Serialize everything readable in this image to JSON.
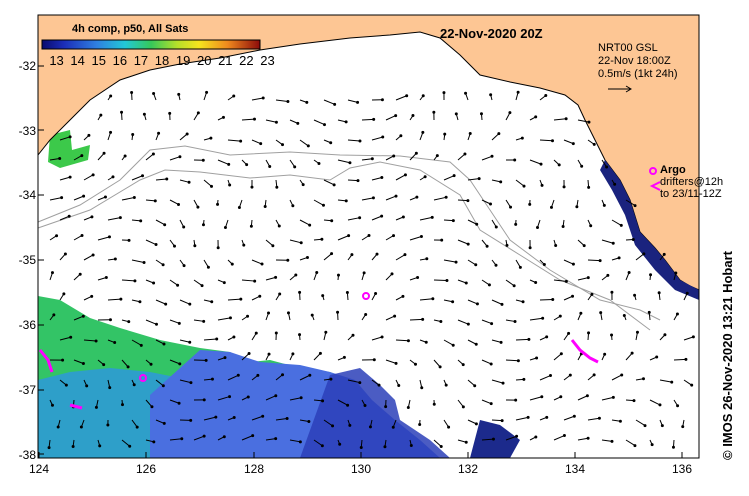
{
  "header": {
    "date_title": "22-Nov-2020 20Z",
    "colorbar_title": "4h comp, p50, All Sats",
    "colorbar_ticks": [
      "13",
      "14",
      "15",
      "16",
      "17",
      "18",
      "19",
      "20",
      "21",
      "22",
      "23"
    ]
  },
  "product": {
    "line1": "NRT00 GSL",
    "line2": "22-Nov 18:00Z",
    "line3": "0.5m/s (1kt 24h)"
  },
  "argo": {
    "title": "Argo",
    "line2": "drifters@12h",
    "line3": "to 23/11-12Z"
  },
  "credit": "©  IMOS 26-Nov-2020 13:21 Hobart",
  "axes": {
    "y_ticks": [
      "-32",
      "-33",
      "-34",
      "-35",
      "-36",
      "-37",
      "-38"
    ],
    "x_ticks": [
      "124",
      "126",
      "128",
      "130",
      "132",
      "134",
      "136"
    ]
  },
  "colors": {
    "land": "#fdc694",
    "current_arrows": "#000000",
    "argo_marker": "#ff00ff",
    "bathymetry": "#a0a0a0"
  }
}
